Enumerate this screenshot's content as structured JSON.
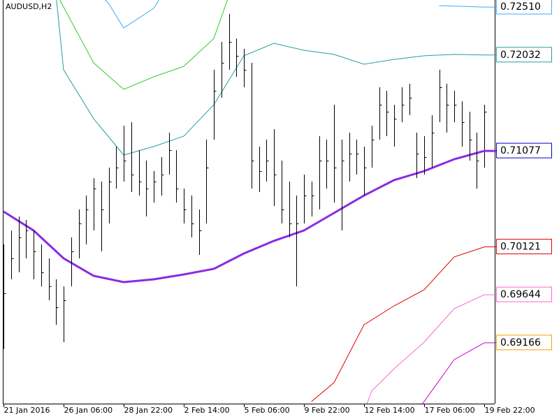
{
  "chart_data": {
    "type": "ohlc",
    "title": "AUDUSD,H2",
    "categories": [
      "21 Jan 2016",
      null,
      null,
      null,
      null,
      null,
      null,
      null,
      "26 Jan 06:00",
      null,
      null,
      null,
      null,
      null,
      null,
      null,
      "28 Jan 22:00",
      null,
      null,
      null,
      null,
      null,
      null,
      null,
      "2 Feb 14:00",
      null,
      null,
      null,
      null,
      null,
      null,
      null,
      "5 Feb 06:00",
      null,
      null,
      null,
      null,
      null,
      null,
      null,
      "9 Feb 22:00",
      null,
      null,
      null,
      null,
      null,
      null,
      null,
      "12 Feb 14:00",
      null,
      null,
      null,
      null,
      null,
      null,
      null,
      "17 Feb 06:00",
      null,
      null,
      null,
      null,
      null,
      null,
      null,
      "19 Feb 22:00"
    ],
    "high": [
      0.70146,
      0.70285,
      0.70424,
      0.70389,
      0.70285,
      0.70146,
      0.70007,
      0.69798,
      0.69728,
      0.70215,
      0.70494,
      0.70633,
      0.70806,
      0.70772,
      0.70911,
      0.7112,
      0.71328,
      0.71363,
      0.71085,
      0.7098,
      0.70876,
      0.71015,
      0.71259,
      0.71085,
      0.70702,
      0.70633,
      0.70494,
      0.7119,
      0.71885,
      0.72163,
      0.72441,
      0.72197,
      0.72093,
      0.71954,
      0.7112,
      0.7119,
      0.71293,
      0.7098,
      0.70772,
      0.70633,
      0.70841,
      0.70772,
      0.71224,
      0.7119,
      0.71537,
      0.7119,
      0.71259,
      0.7119,
      0.7112,
      0.71328,
      0.71711,
      0.71676,
      0.71537,
      0.71711,
      0.71746,
      0.71259,
      0.71224,
      0.71432,
      0.71885,
      0.71746,
      0.71676,
      0.71572,
      0.71467,
      0.71259,
      0.71537
    ],
    "low": [
      0.69103,
      0.69798,
      0.69868,
      0.70007,
      0.69798,
      0.69728,
      0.69589,
      0.69346,
      0.69172,
      0.69728,
      0.70007,
      0.70146,
      0.70285,
      0.70076,
      0.70354,
      0.70702,
      0.70772,
      0.70667,
      0.70633,
      0.70424,
      0.70563,
      0.70633,
      0.70841,
      0.70563,
      0.70354,
      0.70215,
      0.70041,
      0.70354,
      0.7119,
      0.71606,
      0.71885,
      0.71815,
      0.71711,
      0.70702,
      0.70667,
      0.70772,
      0.70528,
      0.70354,
      0.70215,
      0.69728,
      0.70354,
      0.70424,
      0.70494,
      0.70702,
      0.70563,
      0.70285,
      0.70772,
      0.70841,
      0.70633,
      0.70911,
      0.7119,
      0.71224,
      0.7112,
      0.71363,
      0.71432,
      0.70806,
      0.70841,
      0.70911,
      0.71363,
      0.71259,
      0.71363,
      0.7112,
      0.7098,
      0.70702,
      0.70911
    ],
    "close": [
      0.69659,
      0.70007,
      0.70215,
      0.70285,
      0.70076,
      0.69868,
      0.69728,
      0.6952,
      0.69589,
      0.70076,
      0.70354,
      0.70494,
      0.70702,
      0.70494,
      0.70772,
      0.70911,
      0.7098,
      0.70841,
      0.70772,
      0.70702,
      0.70772,
      0.70841,
      0.71085,
      0.70702,
      0.70494,
      0.70354,
      0.70285,
      0.70911,
      0.71676,
      0.71954,
      0.72163,
      0.72024,
      0.71885,
      0.7098,
      0.70876,
      0.7098,
      0.70841,
      0.70494,
      0.70354,
      0.70354,
      0.70633,
      0.70633,
      0.7098,
      0.7098,
      0.70911,
      0.7098,
      0.7105,
      0.7105,
      0.70911,
      0.7119,
      0.71537,
      0.71467,
      0.71398,
      0.71537,
      0.71606,
      0.7105,
      0.71015,
      0.71259,
      0.71711,
      0.71537,
      0.71537,
      0.71363,
      0.7119,
      0.7098,
      0.71467
    ],
    "bar_color": "#000000",
    "ylim": [
      0.6856,
      0.7258
    ],
    "series": [
      {
        "color": "#3fa9f5",
        "x": [
          13,
          14,
          16,
          20,
          21,
          40,
          58,
          64
        ],
        "values": [
          0.7262,
          0.72545,
          0.72302,
          0.72497,
          0.7262,
          null,
          0.72524,
          0.7251
        ],
        "value_labels": [
          null,
          null,
          null,
          null,
          null,
          null,
          null,
          "0.72510"
        ]
      },
      {
        "color": "#33cc33",
        "x": [
          7,
          8,
          12,
          16,
          20,
          24,
          28,
          30
        ],
        "values": [
          0.7265,
          0.7251,
          0.71954,
          0.7169,
          0.71815,
          0.71919,
          0.72197,
          0.7262
        ]
      },
      {
        "color": "#2a9d9d",
        "x": [
          7,
          8,
          12,
          16,
          20,
          24,
          28,
          32,
          36,
          40,
          44,
          48,
          52,
          56,
          60,
          64
        ],
        "values": [
          0.7262,
          0.71885,
          0.71398,
          0.71036,
          0.7112,
          0.71224,
          0.71537,
          0.72024,
          0.72149,
          0.72079,
          0.72038,
          0.7194,
          0.71989,
          0.72024,
          0.72038,
          0.72032
        ],
        "value_labels": [
          null,
          null,
          null,
          null,
          null,
          null,
          null,
          null,
          null,
          null,
          null,
          null,
          null,
          null,
          null,
          "0.72032"
        ]
      },
      {
        "color": "#8a2be2",
        "width": 3,
        "x": [
          0,
          4,
          8,
          12,
          16,
          20,
          24,
          28,
          32,
          36,
          40,
          44,
          48,
          52,
          56,
          60,
          64
        ],
        "values": [
          0.70473,
          0.70285,
          0.70007,
          0.69833,
          0.6977,
          0.69798,
          0.69847,
          0.69902,
          0.70055,
          0.70181,
          0.70285,
          0.70459,
          0.70633,
          0.70786,
          0.70876,
          0.70994,
          0.71077
        ],
        "value_labels": [
          null,
          null,
          null,
          null,
          null,
          null,
          null,
          null,
          null,
          null,
          null,
          null,
          null,
          null,
          null,
          null,
          "0.71077"
        ],
        "label_color": "#0000cc"
      },
      {
        "color": "#e00000",
        "x": [
          41,
          44,
          48,
          52,
          56,
          60,
          64
        ],
        "values": [
          0.68581,
          0.68769,
          0.69346,
          0.69534,
          0.69694,
          0.70021,
          0.70121
        ],
        "value_labels": [
          null,
          null,
          null,
          null,
          null,
          null,
          "0.70121"
        ]
      },
      {
        "color": "#ff66cc",
        "x": [
          48,
          49,
          52,
          56,
          60,
          64
        ],
        "values": [
          0.68477,
          0.68685,
          0.68908,
          0.69172,
          0.69506,
          0.69644
        ],
        "value_labels": [
          null,
          null,
          null,
          null,
          null,
          "0.69644"
        ]
      },
      {
        "color": "#cc00cc",
        "x": [
          55,
          60,
          64
        ],
        "values": [
          0.68477,
          0.68998,
          0.69166
        ],
        "value_labels": [
          null,
          null,
          "0.69166"
        ],
        "label_color": "#f0a000"
      }
    ]
  }
}
